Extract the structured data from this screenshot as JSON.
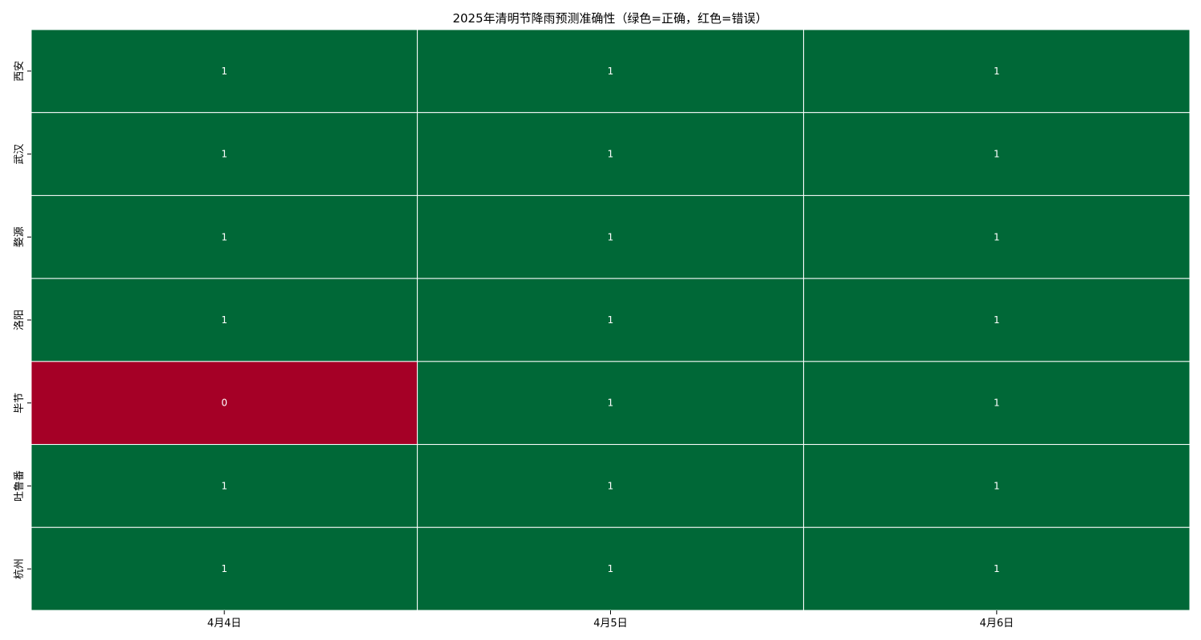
{
  "chart_data": {
    "type": "heatmap",
    "title": "2025年清明节降雨预测准确性（绿色=正确，红色=错误）",
    "x_categories": [
      "4月4日",
      "4月5日",
      "4月6日"
    ],
    "y_categories": [
      "西安",
      "武汉",
      "婺源",
      "洛阳",
      "毕节",
      "吐鲁番",
      "杭州"
    ],
    "values": [
      [
        1,
        1,
        1
      ],
      [
        1,
        1,
        1
      ],
      [
        1,
        1,
        1
      ],
      [
        1,
        1,
        1
      ],
      [
        0,
        1,
        1
      ],
      [
        1,
        1,
        1
      ],
      [
        1,
        1,
        1
      ]
    ],
    "color_map": {
      "0": "#a50026",
      "1": "#006837"
    },
    "cell_border_color": "#ffffff",
    "annotations": true,
    "colorbar": false
  }
}
